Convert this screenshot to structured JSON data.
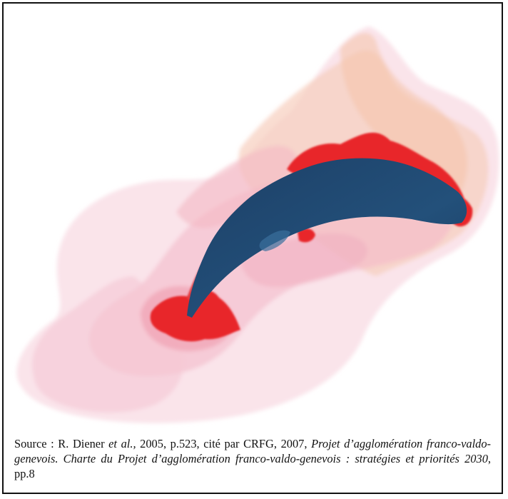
{
  "colors": {
    "urban_core": "#e8282b",
    "lake": "#1f4a74",
    "lake_highlight": "#3b6f9c",
    "influence_pink": "#f3b6c6",
    "influence_peach": "#f7cfbd"
  },
  "map": {
    "features": [
      "urban-influence-zones",
      "urban-core",
      "lake"
    ]
  },
  "caption": {
    "prefix": "Source : R. Diener ",
    "etal": "et al.,",
    "middle": " 2005, p.523, cité par CRFG, 2007, ",
    "title": "Projet d’agglomération franco-valdo-genevois. Charte du Projet d’agglomération franco-valdo-genevois : stratégies et priorités 2030",
    "suffix": ", pp.8"
  }
}
